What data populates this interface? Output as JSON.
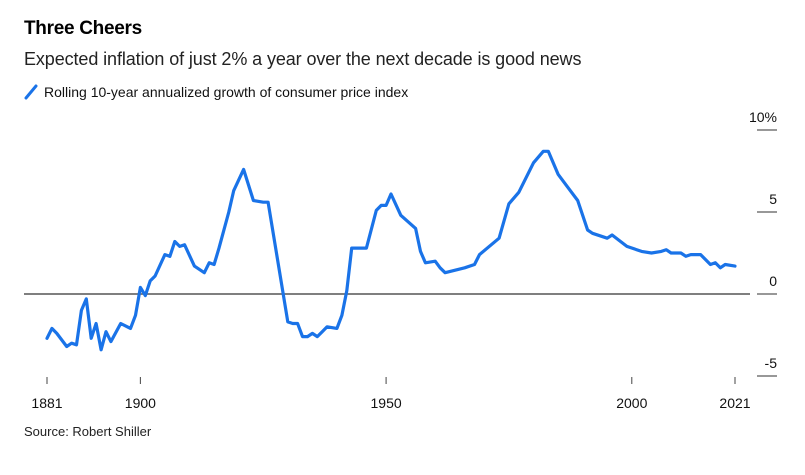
{
  "chart_data": {
    "type": "line",
    "title": "Three Cheers",
    "subtitle": "Expected inflation of just 2% a year over the next decade is good news",
    "source": "Source: Robert Shiller",
    "xlabel": "",
    "ylabel": "",
    "xlim": [
      1881,
      2021
    ],
    "ylim": [
      -5,
      10
    ],
    "grid": false,
    "legend_position": "top-left",
    "series_color": "#1a73e8",
    "zero_line_color": "#555555",
    "x_ticks": [
      {
        "value": 1881,
        "label": "1881"
      },
      {
        "value": 1900,
        "label": "1900"
      },
      {
        "value": 1950,
        "label": "1950"
      },
      {
        "value": 2000,
        "label": "2000"
      },
      {
        "value": 2021,
        "label": "2021"
      }
    ],
    "y_ticks": [
      {
        "value": 10,
        "label": "10%"
      },
      {
        "value": 5,
        "label": "5"
      },
      {
        "value": 0,
        "label": "0"
      },
      {
        "value": -5,
        "label": "-5"
      }
    ],
    "series": [
      {
        "name": "Rolling 10-year annualized growth of consumer price index",
        "x": [
          1881,
          1882,
          1883,
          1885,
          1886,
          1887,
          1888,
          1889,
          1890,
          1891,
          1892,
          1893,
          1894,
          1896,
          1898,
          1899,
          1900,
          1901,
          1902,
          1903,
          1905,
          1906,
          1907,
          1908,
          1909,
          1911,
          1913,
          1914,
          1915,
          1916,
          1918,
          1919,
          1921,
          1923,
          1925,
          1926,
          1930,
          1931,
          1932,
          1933,
          1934,
          1935,
          1936,
          1937,
          1938,
          1940,
          1941,
          1942,
          1943,
          1946,
          1948,
          1949,
          1950,
          1951,
          1953,
          1956,
          1957,
          1958,
          1960,
          1961,
          1962,
          1966,
          1968,
          1969,
          1973,
          1975,
          1977,
          1980,
          1982,
          1983,
          1985,
          1987,
          1989,
          1991,
          1992,
          1995,
          1996,
          1999,
          2002,
          2004,
          2006,
          2007,
          2008,
          2010,
          2011,
          2012,
          2014,
          2016,
          2017,
          2018,
          2019,
          2021
        ],
        "values": [
          -2.7,
          -2.1,
          -2.4,
          -3.2,
          -3.0,
          -3.1,
          -1.0,
          -0.3,
          -2.7,
          -1.8,
          -3.4,
          -2.3,
          -2.9,
          -1.8,
          -2.1,
          -1.3,
          0.4,
          -0.1,
          0.8,
          1.1,
          2.4,
          2.3,
          3.2,
          2.9,
          3.0,
          1.7,
          1.3,
          1.9,
          1.8,
          2.8,
          5.0,
          6.3,
          7.6,
          5.7,
          5.6,
          5.6,
          -1.7,
          -1.8,
          -1.8,
          -2.6,
          -2.6,
          -2.4,
          -2.6,
          -2.3,
          -2.0,
          -2.1,
          -1.3,
          0.2,
          2.8,
          2.8,
          5.1,
          5.4,
          5.4,
          6.1,
          4.8,
          4.0,
          2.6,
          1.9,
          2.0,
          1.6,
          1.3,
          1.6,
          1.8,
          2.4,
          3.4,
          5.5,
          6.2,
          8.0,
          8.7,
          8.7,
          7.3,
          6.5,
          5.7,
          3.9,
          3.7,
          3.4,
          3.6,
          2.9,
          2.6,
          2.5,
          2.6,
          2.7,
          2.5,
          2.5,
          2.3,
          2.4,
          2.4,
          1.8,
          1.9,
          1.6,
          1.8,
          1.7
        ]
      }
    ]
  }
}
